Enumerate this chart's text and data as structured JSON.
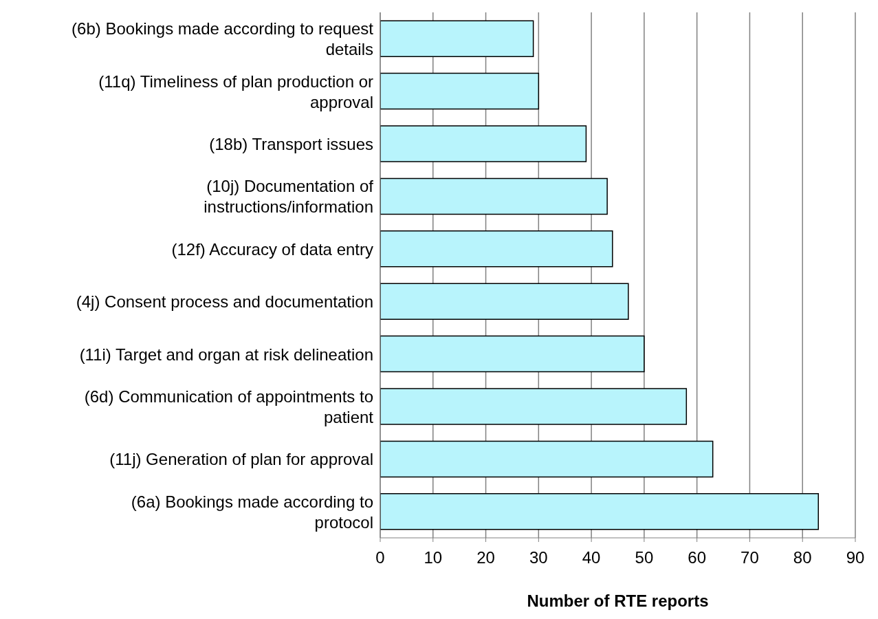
{
  "chart_data": {
    "type": "bar",
    "orientation": "horizontal",
    "xlabel": "Number of RTE reports",
    "categories": [
      "(6b) Bookings made according to request details",
      "(11q) Timeliness of plan production or approval",
      "(18b) Transport issues",
      "(10j) Documentation of instructions/information",
      "(12f) Accuracy of data entry",
      "(4j) Consent process and documentation",
      "(11i) Target and organ at risk delineation",
      "(6d) Communication of appointments to patient",
      "(11j) Generation of plan for approval",
      "(6a) Bookings made according to protocol"
    ],
    "values": [
      29,
      30,
      39,
      43,
      44,
      47,
      50,
      58,
      63,
      83
    ],
    "color": "#b8f4fc",
    "xlim": [
      0,
      90
    ],
    "xticks": [
      0,
      10,
      20,
      30,
      40,
      50,
      60,
      70,
      80,
      90
    ],
    "grid": "x"
  }
}
